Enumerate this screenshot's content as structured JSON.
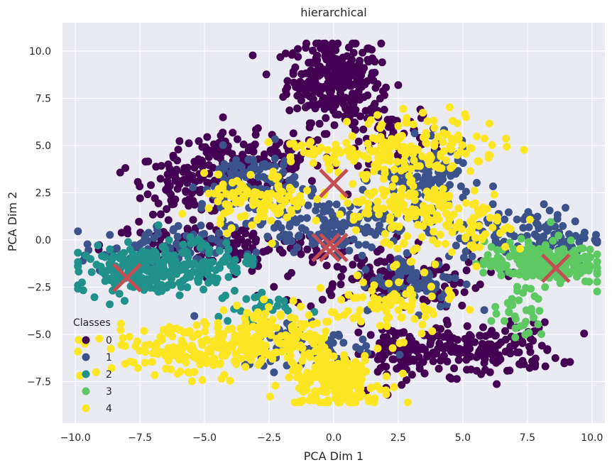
{
  "chart_data": {
    "type": "scatter",
    "title": "hierarchical",
    "xlabel": "PCA Dim 1",
    "ylabel": "PCA Dim 2",
    "xlim": [
      -10.5,
      10.5
    ],
    "ylim": [
      -9.7,
      11.5
    ],
    "xticks": [
      -10.0,
      -7.5,
      -5.0,
      -2.5,
      0.0,
      2.5,
      5.0,
      7.5,
      10.0
    ],
    "xtick_labels": [
      "−10.0",
      "−7.5",
      "−5.0",
      "−2.5",
      "0.0",
      "2.5",
      "5.0",
      "7.5",
      "10.0"
    ],
    "yticks": [
      -7.5,
      -5.0,
      -2.5,
      0.0,
      2.5,
      5.0,
      7.5,
      10.0
    ],
    "ytick_labels": [
      "−7.5",
      "−5.0",
      "−2.5",
      "0.0",
      "2.5",
      "5.0",
      "7.5",
      "10.0"
    ],
    "grid": true,
    "legend": {
      "title": "Classes",
      "placement": "lower-left",
      "entries": [
        "0",
        "1",
        "2",
        "3",
        "4"
      ]
    },
    "class_colors": [
      "#440154",
      "#3b528b",
      "#21918c",
      "#5ec962",
      "#fde725"
    ],
    "centroid_color": "#c44e52",
    "centroids": [
      {
        "x": 0.0,
        "y": 3.0
      },
      {
        "x": -8.0,
        "y": -2.0
      },
      {
        "x": 8.6,
        "y": -1.5
      },
      {
        "x": -0.3,
        "y": -0.4
      },
      {
        "x": 0.0,
        "y": -0.4
      }
    ],
    "clusters": [
      {
        "class": 0,
        "x": 0.0,
        "y": 8.5,
        "sx": 0.9,
        "sy": 1.1,
        "n": 300
      },
      {
        "class": 0,
        "x": -3.5,
        "y": 4.2,
        "sx": 1.8,
        "sy": 0.7,
        "n": 140
      },
      {
        "class": 0,
        "x": -5.5,
        "y": 3.0,
        "sx": 0.9,
        "sy": 0.8,
        "n": 90
      },
      {
        "class": 0,
        "x": -4.5,
        "y": -0.3,
        "sx": 2.2,
        "sy": 0.6,
        "n": 140
      },
      {
        "class": 0,
        "x": 2.0,
        "y": -2.0,
        "sx": 2.0,
        "sy": 0.8,
        "n": 130
      },
      {
        "class": 0,
        "x": 5.5,
        "y": -5.8,
        "sx": 1.6,
        "sy": 0.7,
        "n": 180
      },
      {
        "class": 0,
        "x": 2.5,
        "y": -6.0,
        "sx": 0.9,
        "sy": 0.7,
        "n": 80
      },
      {
        "class": 0,
        "x": 2.2,
        "y": 5.5,
        "sx": 1.0,
        "sy": 0.9,
        "n": 70
      },
      {
        "class": 1,
        "x": -3.3,
        "y": 3.0,
        "sx": 0.9,
        "sy": 0.9,
        "n": 110
      },
      {
        "class": 1,
        "x": 3.5,
        "y": 3.2,
        "sx": 0.9,
        "sy": 0.9,
        "n": 110
      },
      {
        "class": 1,
        "x": 0.0,
        "y": 0.8,
        "sx": 1.7,
        "sy": 0.7,
        "n": 150
      },
      {
        "class": 1,
        "x": -7.0,
        "y": -0.5,
        "sx": 1.4,
        "sy": 0.6,
        "n": 90
      },
      {
        "class": 1,
        "x": 7.5,
        "y": 0.2,
        "sx": 1.5,
        "sy": 0.8,
        "n": 120
      },
      {
        "class": 1,
        "x": 3.0,
        "y": -2.2,
        "sx": 1.0,
        "sy": 0.7,
        "n": 80
      },
      {
        "class": 1,
        "x": -1.0,
        "y": -5.5,
        "sx": 1.3,
        "sy": 0.7,
        "n": 70
      },
      {
        "class": 2,
        "x": -7.3,
        "y": -1.6,
        "sx": 1.3,
        "sy": 0.6,
        "n": 220
      },
      {
        "class": 2,
        "x": -5.0,
        "y": -1.0,
        "sx": 0.9,
        "sy": 0.5,
        "n": 50
      },
      {
        "class": 2,
        "x": -3.0,
        "y": -3.6,
        "sx": 0.8,
        "sy": 0.5,
        "n": 30
      },
      {
        "class": 3,
        "x": 8.0,
        "y": -1.2,
        "sx": 1.1,
        "sy": 0.6,
        "n": 230
      },
      {
        "class": 3,
        "x": 7.2,
        "y": -4.0,
        "sx": 0.5,
        "sy": 0.6,
        "n": 30
      },
      {
        "class": 4,
        "x": 3.5,
        "y": 5.0,
        "sx": 1.5,
        "sy": 0.9,
        "n": 130
      },
      {
        "class": 4,
        "x": 2.5,
        "y": 2.0,
        "sx": 1.2,
        "sy": 0.7,
        "n": 100
      },
      {
        "class": 4,
        "x": -3.0,
        "y": 2.0,
        "sx": 1.0,
        "sy": 0.7,
        "n": 100
      },
      {
        "class": 4,
        "x": 5.0,
        "y": 0.5,
        "sx": 1.5,
        "sy": 0.7,
        "n": 80
      },
      {
        "class": 4,
        "x": 0.0,
        "y": -7.5,
        "sx": 0.9,
        "sy": 0.7,
        "n": 220
      },
      {
        "class": 4,
        "x": -5.0,
        "y": -5.8,
        "sx": 2.0,
        "sy": 0.7,
        "n": 220
      },
      {
        "class": 4,
        "x": -2.0,
        "y": -5.0,
        "sx": 1.0,
        "sy": 0.8,
        "n": 100
      },
      {
        "class": 4,
        "x": 2.2,
        "y": -3.5,
        "sx": 1.2,
        "sy": 0.8,
        "n": 80
      },
      {
        "class": 4,
        "x": 0.0,
        "y": 4.5,
        "sx": 1.2,
        "sy": 0.5,
        "n": 60
      }
    ]
  }
}
